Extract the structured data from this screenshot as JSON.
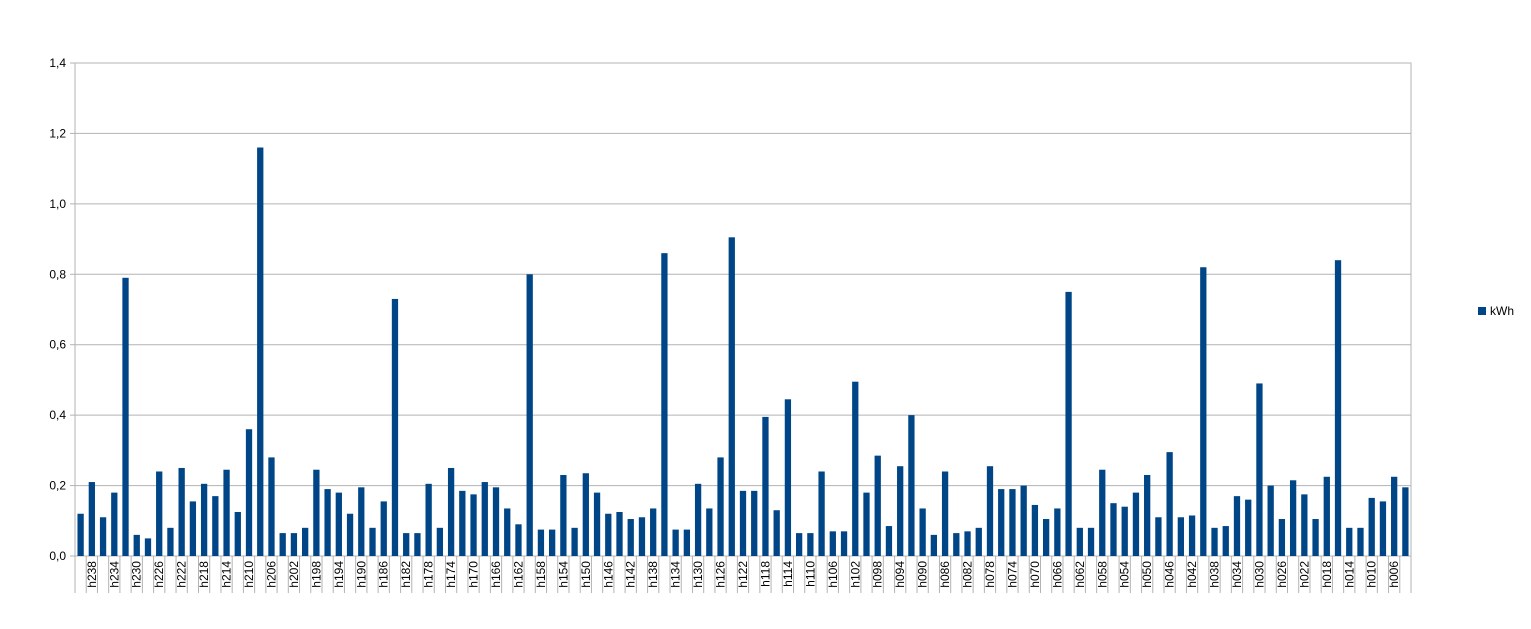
{
  "chart_data": {
    "type": "bar",
    "categories": [
      null,
      "h238",
      null,
      "h234",
      null,
      "h230",
      null,
      "h226",
      null,
      "h222",
      null,
      "h218",
      null,
      "h214",
      null,
      "h210",
      null,
      "h206",
      null,
      "h202",
      null,
      "h198",
      null,
      "h194",
      null,
      "h190",
      null,
      "h186",
      null,
      "h182",
      null,
      "h178",
      null,
      "h174",
      null,
      "h170",
      null,
      "h166",
      null,
      "h162",
      null,
      "h158",
      null,
      "h154",
      null,
      "h150",
      null,
      "h146",
      null,
      "h142",
      null,
      "h138",
      null,
      "h134",
      null,
      "h130",
      null,
      "h126",
      null,
      "h122",
      null,
      "h118",
      null,
      "h114",
      null,
      "h110",
      null,
      "h106",
      null,
      "h102",
      null,
      "h098",
      null,
      "h094",
      null,
      "h090",
      null,
      "h086",
      null,
      "h082",
      null,
      "h078",
      null,
      "h074",
      null,
      "h070",
      null,
      "h066",
      null,
      "h062",
      null,
      "h058",
      null,
      "h054",
      null,
      "h050",
      null,
      "h046",
      null,
      "h042",
      null,
      "h038",
      null,
      "h034",
      null,
      "h030",
      null,
      "h026",
      null,
      "h022",
      null,
      "h018",
      null,
      "h014",
      null,
      "h010",
      null,
      "h006",
      null
    ],
    "series": [
      {
        "name": "kWh",
        "color": "#004586",
        "values": [
          0.12,
          0.21,
          0.11,
          0.18,
          0.79,
          0.06,
          0.05,
          0.24,
          0.08,
          0.25,
          0.155,
          0.205,
          0.17,
          0.245,
          0.125,
          0.36,
          1.16,
          0.28,
          0.065,
          0.065,
          0.08,
          0.245,
          0.19,
          0.18,
          0.12,
          0.195,
          0.08,
          0.155,
          0.73,
          0.065,
          0.065,
          0.205,
          0.08,
          0.25,
          0.185,
          0.175,
          0.21,
          0.195,
          0.135,
          0.09,
          0.8,
          0.075,
          0.075,
          0.23,
          0.08,
          0.235,
          0.18,
          0.12,
          0.125,
          0.105,
          0.11,
          0.135,
          0.86,
          0.075,
          0.075,
          0.205,
          0.135,
          0.28,
          0.905,
          0.185,
          0.185,
          0.395,
          0.13,
          0.445,
          0.065,
          0.065,
          0.24,
          0.07,
          0.07,
          0.495,
          0.18,
          0.285,
          0.085,
          0.255,
          0.4,
          0.135,
          0.06,
          0.24,
          0.065,
          0.07,
          0.08,
          0.255,
          0.19,
          0.19,
          0.2,
          0.145,
          0.105,
          0.135,
          0.75,
          0.08,
          0.08,
          0.245,
          0.15,
          0.14,
          0.18,
          0.23,
          0.11,
          0.295,
          0.11,
          0.115,
          0.82,
          0.08,
          0.085,
          0.17,
          0.16,
          0.49,
          0.2,
          0.105,
          0.215,
          0.175,
          0.105,
          0.225,
          0.84,
          0.08,
          0.08,
          0.165,
          0.155,
          0.225,
          0.195
        ]
      }
    ],
    "ylim": [
      0,
      1.4
    ],
    "yticks": [
      {
        "value": 0,
        "label": "0,0"
      },
      {
        "value": 0.2,
        "label": "0,2"
      },
      {
        "value": 0.4,
        "label": "0,4"
      },
      {
        "value": 0.6,
        "label": "0,6"
      },
      {
        "value": 0.8,
        "label": "0,8"
      },
      {
        "value": 1.0,
        "label": "1,0"
      },
      {
        "value": 1.2,
        "label": "1,2"
      },
      {
        "value": 1.4,
        "label": "1,4"
      }
    ],
    "grid": true,
    "legend": "right"
  }
}
